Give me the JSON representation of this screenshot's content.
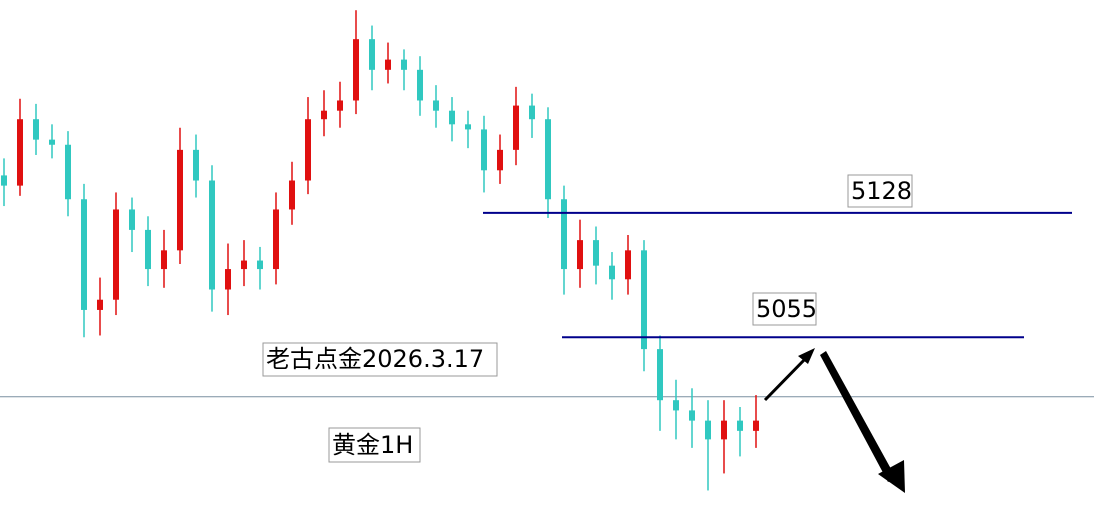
{
  "chart_data": {
    "type": "candlestick",
    "open": [
      5150,
      5144,
      5183,
      5171,
      5168,
      5136,
      5071,
      5077,
      5130,
      5118,
      5095,
      5106,
      5165,
      5147,
      5083,
      5095,
      5100,
      5095,
      5130,
      5147,
      5183,
      5188,
      5194,
      5230,
      5212,
      5218,
      5212,
      5194,
      5188,
      5180,
      5177,
      5153,
      5165,
      5191,
      5183,
      5136,
      5095,
      5112,
      5097,
      5089,
      5106,
      5048,
      5018,
      5012,
      5006,
      4995,
      5006,
      5000
    ],
    "high": [
      5160,
      5195,
      5192,
      5180,
      5176,
      5145,
      5090,
      5140,
      5137,
      5126,
      5118,
      5178,
      5174,
      5156,
      5110,
      5112,
      5108,
      5140,
      5158,
      5196,
      5200,
      5205,
      5247,
      5238,
      5228,
      5224,
      5220,
      5203,
      5196,
      5188,
      5185,
      5174,
      5202,
      5198,
      5190,
      5144,
      5124,
      5120,
      5105,
      5115,
      5112,
      5056,
      5030,
      5025,
      5018,
      5018,
      5014,
      5021
    ],
    "low": [
      5132,
      5138,
      5162,
      5160,
      5126,
      5055,
      5056,
      5068,
      5105,
      5085,
      5084,
      5098,
      5137,
      5070,
      5068,
      5085,
      5083,
      5086,
      5121,
      5139,
      5173,
      5178,
      5186,
      5200,
      5204,
      5200,
      5185,
      5178,
      5170,
      5166,
      5140,
      5145,
      5156,
      5172,
      5125,
      5080,
      5084,
      5086,
      5077,
      5080,
      5035,
      5000,
      4995,
      4990,
      4965,
      4975,
      4985,
      4990
    ],
    "close": [
      5144,
      5183,
      5171,
      5168,
      5136,
      5071,
      5077,
      5130,
      5118,
      5095,
      5106,
      5165,
      5147,
      5083,
      5095,
      5100,
      5095,
      5130,
      5147,
      5183,
      5188,
      5194,
      5230,
      5212,
      5218,
      5212,
      5194,
      5188,
      5180,
      5177,
      5153,
      5165,
      5191,
      5183,
      5136,
      5095,
      5112,
      5097,
      5089,
      5106,
      5048,
      5018,
      5012,
      5006,
      4995,
      5006,
      5000,
      5006
    ],
    "up_color": "#e01010",
    "down_color": "#30c8c0",
    "ylim": [
      4950,
      5253
    ],
    "levels": [
      5128,
      5055
    ],
    "level_color": "#00008b",
    "price_line": 5020,
    "annotations": [
      "老古点金2026.3.17",
      "黄金1H"
    ]
  }
}
